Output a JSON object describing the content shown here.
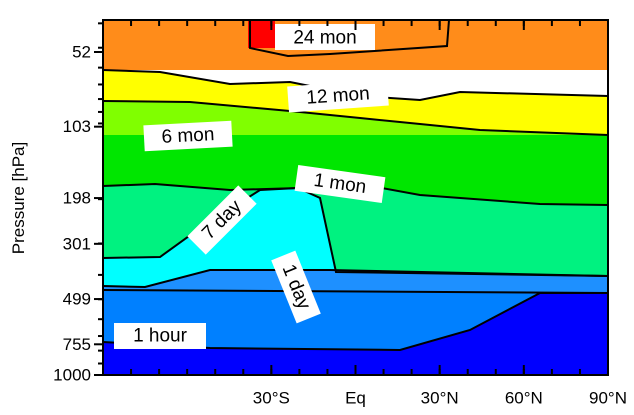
{
  "chart_data": {
    "type": "contour",
    "title": "",
    "xlabel": "",
    "ylabel": "Pressure [hPa]",
    "xlim": [
      -90,
      90
    ],
    "ylim": [
      1000,
      30
    ],
    "yscale": "log",
    "grid": false,
    "x_ticks": [
      {
        "value": -30,
        "label": "30°S"
      },
      {
        "value": 0,
        "label": "Eq"
      },
      {
        "value": 30,
        "label": "30°N"
      },
      {
        "value": 60,
        "label": "60°N"
      },
      {
        "value": 90,
        "label": "90°N"
      }
    ],
    "y_ticks": [
      {
        "value": 52,
        "label": "52"
      },
      {
        "value": 103,
        "label": "103"
      },
      {
        "value": 198,
        "label": "198"
      },
      {
        "value": 301,
        "label": "301"
      },
      {
        "value": 499,
        "label": "499"
      },
      {
        "value": 755,
        "label": "755"
      },
      {
        "value": 1000,
        "label": "1000"
      }
    ],
    "levels": [
      {
        "name": "24 mon",
        "color": "#ff0000",
        "contour": [
          [
            -15,
            30
          ],
          [
            -15,
            45
          ],
          [
            0,
            47
          ],
          [
            10,
            45
          ],
          [
            15,
            30
          ]
        ]
      },
      {
        "name": "",
        "color": "#ff8c1a"
      },
      {
        "name": "12 mon",
        "color": "#ffff00",
        "contour": [
          [
            -90,
            60
          ],
          [
            -45,
            62
          ],
          [
            -20,
            72
          ],
          [
            0,
            70
          ],
          [
            25,
            80
          ],
          [
            60,
            70
          ],
          [
            90,
            60
          ]
        ]
      },
      {
        "name": "6 mon",
        "color": "#80ff00",
        "contour": [
          [
            -90,
            103
          ],
          [
            -30,
            103
          ],
          [
            0,
            98
          ],
          [
            55,
            108
          ],
          [
            90,
            108
          ]
        ]
      },
      {
        "name": "1 mon",
        "color": "#00e600",
        "contour": [
          [
            -90,
            178
          ],
          [
            -30,
            174
          ],
          [
            -10,
            148
          ],
          [
            0,
            145
          ],
          [
            10,
            160
          ],
          [
            35,
            175
          ],
          [
            60,
            210
          ],
          [
            90,
            210
          ]
        ]
      },
      {
        "name": "7 day",
        "color": "#00f280",
        "contour": [
          [
            -90,
            350
          ],
          [
            -40,
            340
          ],
          [
            -20,
            255
          ],
          [
            0,
            200
          ],
          [
            5,
            196
          ],
          [
            10,
            420
          ],
          [
            90,
            430
          ]
        ]
      },
      {
        "name": "1 day",
        "color": "#00ffff",
        "contour": [
          [
            -90,
            530
          ],
          [
            -30,
            525
          ],
          [
            -15,
            420
          ],
          [
            30,
            420
          ],
          [
            90,
            440
          ]
        ]
      },
      {
        "name": "",
        "color": "#1e90ff",
        "contour": [
          [
            -90,
            499
          ],
          [
            90,
            499
          ]
        ]
      },
      {
        "name": "1 hour",
        "color": "#0080ff",
        "contour": [
          [
            -90,
            770
          ],
          [
            -40,
            770
          ],
          [
            -20,
            790
          ],
          [
            40,
            790
          ],
          [
            60,
            510
          ],
          [
            90,
            505
          ]
        ]
      },
      {
        "name": "",
        "color": "#0000ff"
      }
    ],
    "labels": [
      {
        "text": "24 mon",
        "x": 3,
        "y": 40,
        "rotation": 0
      },
      {
        "text": "12 mon",
        "x": 27,
        "y": 74,
        "rotation": -4
      },
      {
        "text": "6 mon",
        "x": -42,
        "y": 104,
        "rotation": -3
      },
      {
        "text": "1 mon",
        "x": 25,
        "y": 168,
        "rotation": 8
      },
      {
        "text": "7 day",
        "x": -25,
        "y": 270,
        "rotation": -45
      },
      {
        "text": "1 day",
        "x": 6,
        "y": 560,
        "rotation": 68
      },
      {
        "text": "1 hour",
        "x": -65,
        "y": 750,
        "rotation": 0
      }
    ]
  }
}
